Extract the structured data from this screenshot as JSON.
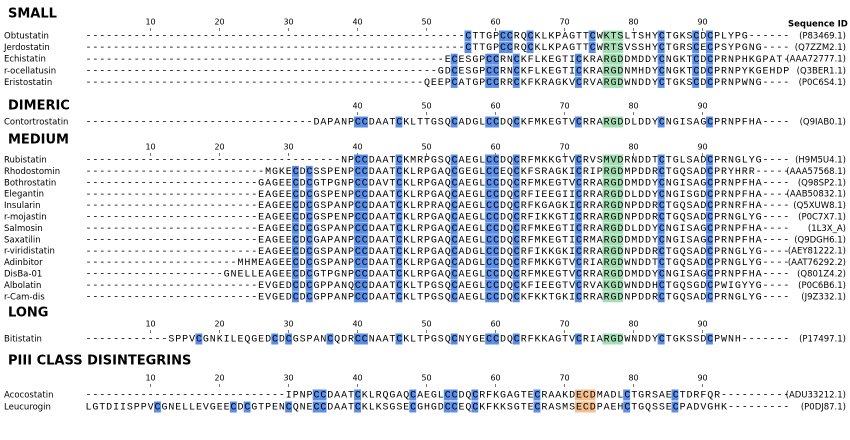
{
  "sequence_id_header": "Sequence ID",
  "cysteine_color": "#5b8ee6",
  "sections": [
    {
      "title": "SMALL",
      "ruler": [
        10,
        20,
        30,
        40,
        50,
        60,
        70,
        80,
        90
      ],
      "highlight": {
        "columns": [
          76,
          78
        ],
        "color": "#a6dfb6"
      },
      "rows": [
        {
          "name": "Obtustatin",
          "sequence": "-------------------------------------------------------CTTGPCCRQCKLKPAGTTCWKTSLTSHYCTGKSCDCPLYPG------",
          "id": "(P83469.1)"
        },
        {
          "name": "Jerdostatin",
          "sequence": "-------------------------------------------------------CTTGPCCRQCKLKPAGTTCWRTSVSSHYCTGRSCECPSYPGNG----",
          "id": "(Q7ZZM2.1)"
        },
        {
          "name": "Echistatin",
          "sequence": "----------------------------------------------------ECESGPCCRNCKFLKEGTICKRARGDDMDDYCNGKTCDCPRNPHKGPAT-",
          "id": "(AAA72777.1)"
        },
        {
          "name": "r-ocellatusin",
          "sequence": "---------------------------------------------------GDCESGPCCRNCKFLKEGTICKRARGDNMHDYCNGKTCDCPRNPYKGEHDP",
          "id": "(Q3BER1.1)"
        },
        {
          "name": "Eristostatin",
          "sequence": "-------------------------------------------------QEEPCATGPCCRRCKFKRAGKVCRVARGDWNDDYCTGKSCDCPRNPWNG----",
          "id": "(P0C6S4.1)"
        }
      ]
    },
    {
      "title": "DIMERIC",
      "ruler": [
        40,
        50,
        60,
        70,
        80,
        90
      ],
      "highlight": {
        "columns": [
          76,
          78
        ],
        "color": "#a6dfb6"
      },
      "rows": [
        {
          "name": "Contortrostatin",
          "sequence": "---------------------------------DAPANPCCDAATCKLTTGSQCADGLCCDQCKFMKEGTVCRRARGDDLDDYCNGISAGCPRNPFHA----",
          "id": "(Q9IAB0.1)"
        }
      ]
    },
    {
      "title": "MEDIUM",
      "ruler": [
        10,
        20,
        30,
        40,
        50,
        60,
        70,
        80,
        90
      ],
      "highlight": {
        "columns": [
          76,
          78
        ],
        "color": "#a6dfb6"
      },
      "rows": [
        {
          "name": "Rubistatin",
          "sequence": "-------------------------------------NPCCDAATCKMRPGSQCAEGLCCDQCRFMKKGTVCRVSMVDRNDDTCTGLSADCPRNGLYG----",
          "id": "(H9M5U4.1)"
        },
        {
          "name": "Rhodostomin",
          "sequence": "--------------------------MGKECDCSSPENPCCDAATCKLRPGAQCGEGLCCEQCKFSRAGKICRIPRGDMPDDRCTGQSADCPRYHRR-----",
          "id": "(AAA57568.1)"
        },
        {
          "name": "Bothrostatin",
          "sequence": "-------------------------GAGEECDCGTPGNPCCDAVTCKLRPGAQCAEGLCCDQCRFMKEGTVCRRARGDDMDDYCNGISAGCPRNPFHA----",
          "id": "(Q98SP2.1)"
        },
        {
          "name": "Elegantin",
          "sequence": "-------------------------EAGEECDCGSPENPCCDAATCKLRPGAQCAEGLCCDQCRFIEEGIICRRARGDDLDDYCNGISGDCPRNPFHA----",
          "id": "(AAB50832.1)"
        },
        {
          "name": "Insularin",
          "sequence": "-------------------------EAGEECDCGSPANPCCDAATCKLRPRAQCAEGLCCDQCRFKGAGKICRRARGDNPDDRCTGQSADCPRNRFHA----",
          "id": "(Q5XUW8.1)"
        },
        {
          "name": "r-mojastin",
          "sequence": "-------------------------EAGEECDCGSPENPCCDAATCKLRPGAQCAEGLCCDQCRFIKKGTICRRARGDNPDDRCTGQSADCPRNGLYG----",
          "id": "(P0C7X7.1)"
        },
        {
          "name": "Salmosin",
          "sequence": "-------------------------EAGEECDCGSPANPCCDAATCKLRPGAQCAEGLCCDQCRFMKEGTICRRARGDDLDDYCNGISAGCPRNPFHA----",
          "id": "(1L3X_A)"
        },
        {
          "name": "Saxatilin",
          "sequence": "-------------------------EAGEECDCGAPANPCCDAATCKLRPGAQCAEGLCCDQCRFMKEGTICRMARGDDMDDYCNGISAGCPRNPFHA----",
          "id": "(Q9DGH6.1)"
        },
        {
          "name": "r-viridistatin",
          "sequence": "-------------------------EAGEECDCGSPANPCCDAATCKLRPGAQCADGLCCDQCRFIKKGKICRRARGDNPDDRCTGQSADCPRNGLYG----",
          "id": "(AEY81222.1)"
        },
        {
          "name": "Adinbitor",
          "sequence": "----------------------MHMEAGEECDCGSPANPCCDAATCKLRPGAQCADGLCCDQCRFMKKGTVCRIARGDWNDDTCTGQSADCPRNGLYG----",
          "id": "(AAT76292.2)"
        },
        {
          "name": "DisBa-01",
          "sequence": "--------------------GNELLEAGEECDCGTPGNPCCDAATCKLRPGAQCAEGLCCDQCRFMKEGTVCRRARGDDMDDYCNGISAGCPRNPFHA----",
          "id": "(Q801Z4.2)"
        },
        {
          "name": "Albolatin",
          "sequence": "-------------------------EVGEDCDCGPPANQCCDAATCKLTPGSQCAEGLCCDQCKFIEEGTVCRVAKGDWNDDHCTGQSGDCPWIGYYG----",
          "id": "(P0C6B6.1)"
        },
        {
          "name": "r-Cam-dis",
          "sequence": "-------------------------EVGEDCDCGPPANPCCDAATCKLTPGSQCAEGLCCDQCKFKKTGKICRRARGDNPDDRCTGQSADCPRNGLYG----",
          "id": "(J9Z332.1)"
        }
      ]
    },
    {
      "title": "LONG",
      "ruler": [
        10,
        20,
        30,
        40,
        50,
        60,
        70,
        80,
        90
      ],
      "highlight": {
        "columns": [
          76,
          78
        ],
        "color": "#a6dfb6"
      },
      "rows": [
        {
          "name": "Bitistatin",
          "sequence": "------------SPPVCGNKILEQGEDCDCGSPANCQDRCCNAATCKLTPGSQCNYGECCDQCRFKKAGTVCRIARGDWNDDYCTGKSSDCPWNH-------",
          "id": "(P17497.1)"
        }
      ]
    },
    {
      "title": "PIII CLASS DISINTEGRINS",
      "ruler": [
        10,
        20,
        30,
        40,
        50,
        60,
        70,
        80,
        90
      ],
      "highlight": {
        "columns": [
          72,
          74
        ],
        "color": "#f5c08e"
      },
      "rows": [
        {
          "name": "Acocostatin",
          "sequence": "-----------------------------IPNPCCDAATCKLRQGAQCAEGLCCDQCRFKGAGTECRAAKDECDMADLCTGRSAECTDRFQR----------",
          "id": "(ADU33212.1)"
        },
        {
          "name": "Leucurogin",
          "sequence": "LGTDIISPPVCGNELLEVGEECDCGTPENCQNECCDAATCKLKSGSECGHGDCCEQCKFKKSGTECRASMSECDPAEHCTGQSSECPADVGHK---------",
          "id": "(P0DJ87.1)"
        }
      ]
    }
  ]
}
